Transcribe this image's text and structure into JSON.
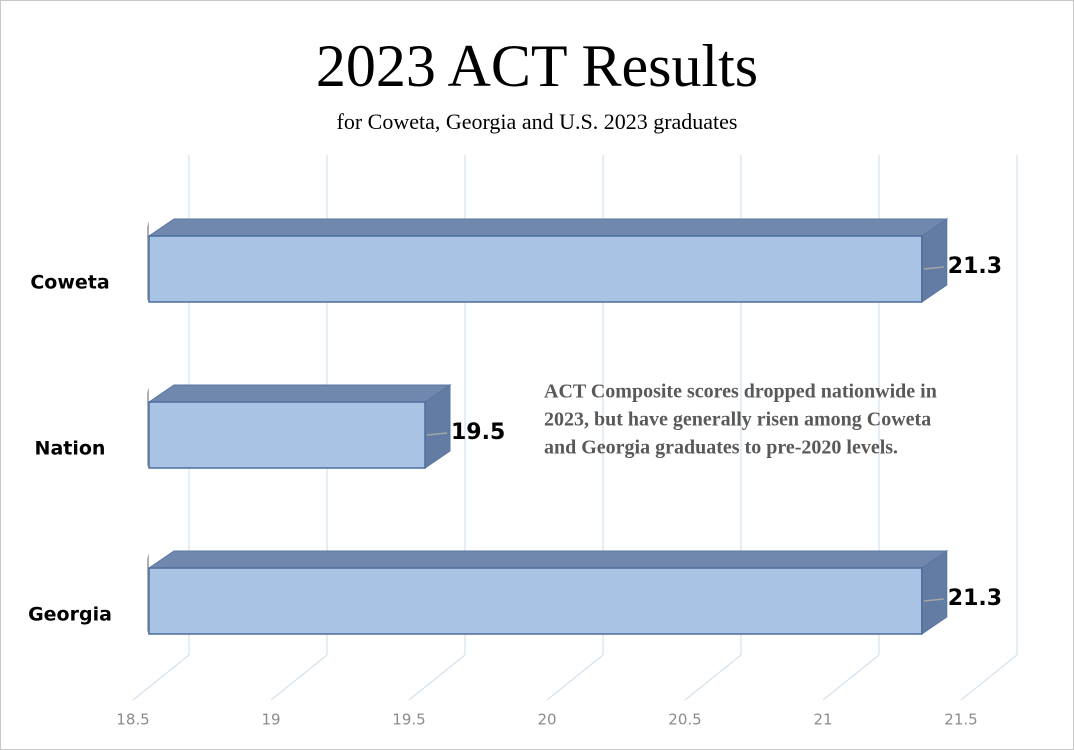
{
  "chart_data": {
    "type": "bar3d",
    "orientation": "horizontal",
    "title": "2023 ACT Results",
    "subtitle": "for Coweta, Georgia and U.S. 2023 graduates",
    "annotation": [
      "ACT Composite scores dropped nationwide in",
      "2023, but have generally risen among Coweta",
      "and Georgia graduates to pre-2020 levels."
    ],
    "categories": [
      "Coweta",
      "Nation",
      "Georgia"
    ],
    "values": [
      21.3,
      19.5,
      21.3
    ],
    "color": "#a9c3e4",
    "xlim": [
      18.5,
      21.5
    ],
    "xticks": [
      18.5,
      19,
      19.5,
      20,
      20.5,
      21,
      21.5
    ],
    "grid": true
  }
}
